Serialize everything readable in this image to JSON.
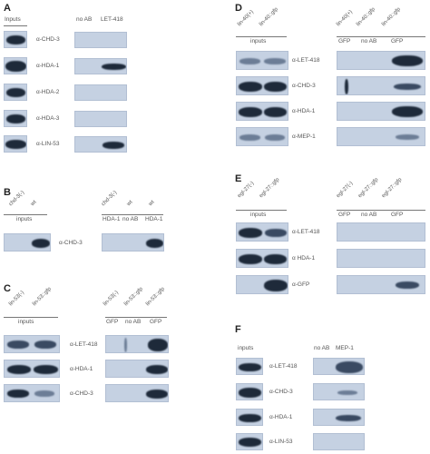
{
  "panels": {
    "A": {
      "label": "A",
      "inputs_label": "Inputs",
      "col_labels": [
        "no AB",
        "LET-418"
      ],
      "rows": [
        "α-CHD-3",
        "α-HDA-1",
        "α-HDA-2",
        "α-HDA-3",
        "α-LIN-53"
      ]
    },
    "B": {
      "label": "B",
      "lane_labels_left": [
        "chd-3(-)",
        "wt"
      ],
      "inputs_label": "inputs",
      "lane_labels_right": [
        "chd-3(-)",
        "wt",
        "wt"
      ],
      "bottom_labels": [
        "HDA-1",
        "no AB",
        "HDA-1"
      ],
      "row": "α-CHD-3"
    },
    "C": {
      "label": "C",
      "lane_labels_left": [
        "lin-53(-)",
        "lin-53::gfp"
      ],
      "inputs_label": "inputs",
      "lane_labels_right": [
        "lin-53(-)",
        "lin-53::gfp",
        "lin-53::gfp"
      ],
      "bottom_labels": [
        "GFP",
        "no AB",
        "GFP"
      ],
      "rows": [
        "α-LET-418",
        "α-HDA-1",
        "α-CHD-3"
      ]
    },
    "D": {
      "label": "D",
      "lane_labels_left": [
        "lin-40(+)",
        "lin-40::gfp"
      ],
      "inputs_label": "inputs",
      "lane_labels_right": [
        "lin-40(+)",
        "lin-40::gfp",
        "lin-40::gfp"
      ],
      "bottom_labels": [
        "GFP",
        "no AB",
        "GFP"
      ],
      "rows": [
        "α-LET-418",
        "α-CHD-3",
        "α-HDA-1",
        "α-MEP-1"
      ]
    },
    "E": {
      "label": "E",
      "lane_labels_left": [
        "egl-27(-)",
        "egl-27::gfp"
      ],
      "inputs_label": "inputs",
      "lane_labels_right": [
        "egl-27(-)",
        "egl-27::gfp",
        "egl-27::gfp"
      ],
      "bottom_labels": [
        "GFP",
        "no AB",
        "GFP"
      ],
      "rows": [
        "α-LET-418",
        "α HDA-1",
        "α-GFP"
      ]
    },
    "F": {
      "label": "F",
      "inputs_label": "inputs",
      "col_labels": [
        "no AB",
        "MEP-1"
      ],
      "rows": [
        "α-LET-418",
        "α-CHD-3",
        "α-HDA-1",
        "α-LIN-53"
      ]
    }
  }
}
